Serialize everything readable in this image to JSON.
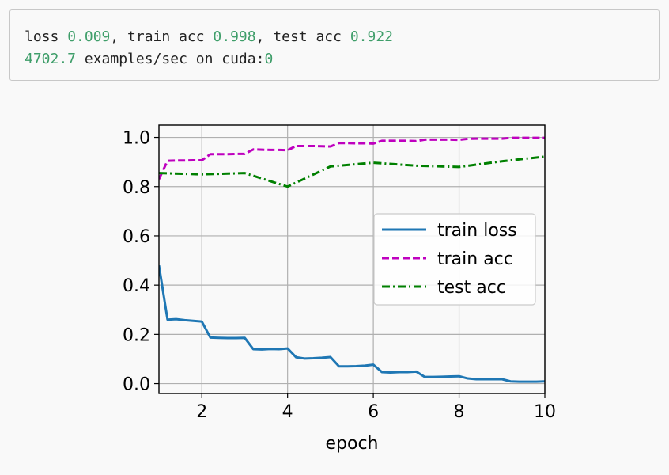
{
  "log": {
    "line1": [
      {
        "t": "loss ",
        "c": "text"
      },
      {
        "t": "0.009",
        "c": "num"
      },
      {
        "t": ", train acc ",
        "c": "text"
      },
      {
        "t": "0.998",
        "c": "num"
      },
      {
        "t": ", test acc ",
        "c": "text"
      },
      {
        "t": "0.922",
        "c": "num"
      }
    ],
    "line2": [
      {
        "t": "4702.7",
        "c": "num"
      },
      {
        "t": " examples/sec on cuda:",
        "c": "text"
      },
      {
        "t": "0",
        "c": "num"
      }
    ]
  },
  "chart_data": {
    "type": "line",
    "xlabel": "epoch",
    "ylabel": "",
    "xlim": [
      1,
      10
    ],
    "ylim": [
      -0.04,
      1.05
    ],
    "xticks": [
      2,
      4,
      6,
      8,
      10
    ],
    "yticks": [
      0.0,
      0.2,
      0.4,
      0.6,
      0.8,
      1.0
    ],
    "grid": true,
    "legend_position": "center-right",
    "series": [
      {
        "name": "train loss",
        "color": "#1f77b4",
        "style": "solid",
        "x": [
          1.0,
          1.2,
          1.4,
          1.6,
          1.8,
          2.0,
          2.2,
          2.4,
          2.6,
          2.8,
          3.0,
          3.2,
          3.4,
          3.6,
          3.8,
          4.0,
          4.2,
          4.4,
          4.6,
          4.8,
          5.0,
          5.2,
          5.4,
          5.6,
          5.8,
          6.0,
          6.2,
          6.4,
          6.6,
          6.8,
          7.0,
          7.2,
          7.4,
          7.6,
          7.8,
          8.0,
          8.2,
          8.4,
          8.6,
          8.8,
          9.0,
          9.2,
          9.4,
          9.6,
          9.8,
          10.0
        ],
        "y": [
          0.48,
          0.26,
          0.262,
          0.258,
          0.255,
          0.252,
          0.187,
          0.186,
          0.185,
          0.185,
          0.186,
          0.14,
          0.139,
          0.141,
          0.14,
          0.143,
          0.107,
          0.102,
          0.103,
          0.105,
          0.108,
          0.07,
          0.07,
          0.071,
          0.073,
          0.077,
          0.047,
          0.045,
          0.047,
          0.047,
          0.049,
          0.027,
          0.027,
          0.028,
          0.029,
          0.03,
          0.021,
          0.018,
          0.018,
          0.018,
          0.018,
          0.009,
          0.008,
          0.008,
          0.008,
          0.009
        ]
      },
      {
        "name": "train acc",
        "color": "#bf00bf",
        "style": "dashed",
        "x": [
          1.0,
          1.2,
          1.4,
          1.6,
          1.8,
          2.0,
          2.2,
          2.4,
          2.6,
          2.8,
          3.0,
          3.2,
          3.4,
          3.6,
          3.8,
          4.0,
          4.2,
          4.4,
          4.6,
          4.8,
          5.0,
          5.2,
          5.4,
          5.6,
          5.8,
          6.0,
          6.2,
          6.4,
          6.6,
          6.8,
          7.0,
          7.2,
          7.4,
          7.6,
          7.8,
          8.0,
          8.2,
          8.4,
          8.6,
          8.8,
          9.0,
          9.2,
          9.4,
          9.6,
          9.8,
          10.0
        ],
        "y": [
          0.83,
          0.905,
          0.906,
          0.906,
          0.907,
          0.907,
          0.932,
          0.932,
          0.932,
          0.933,
          0.933,
          0.951,
          0.95,
          0.949,
          0.949,
          0.948,
          0.965,
          0.965,
          0.965,
          0.964,
          0.963,
          0.977,
          0.977,
          0.976,
          0.976,
          0.975,
          0.986,
          0.986,
          0.986,
          0.986,
          0.985,
          0.991,
          0.991,
          0.991,
          0.991,
          0.99,
          0.994,
          0.995,
          0.995,
          0.995,
          0.995,
          0.998,
          0.998,
          0.998,
          0.998,
          0.998
        ]
      },
      {
        "name": "test acc",
        "color": "#008000",
        "style": "dashdot",
        "x": [
          1,
          2,
          3,
          4,
          5,
          6,
          7,
          8,
          9,
          10
        ],
        "y": [
          0.855,
          0.85,
          0.855,
          0.8,
          0.882,
          0.897,
          0.885,
          0.88,
          0.903,
          0.922
        ]
      }
    ]
  }
}
